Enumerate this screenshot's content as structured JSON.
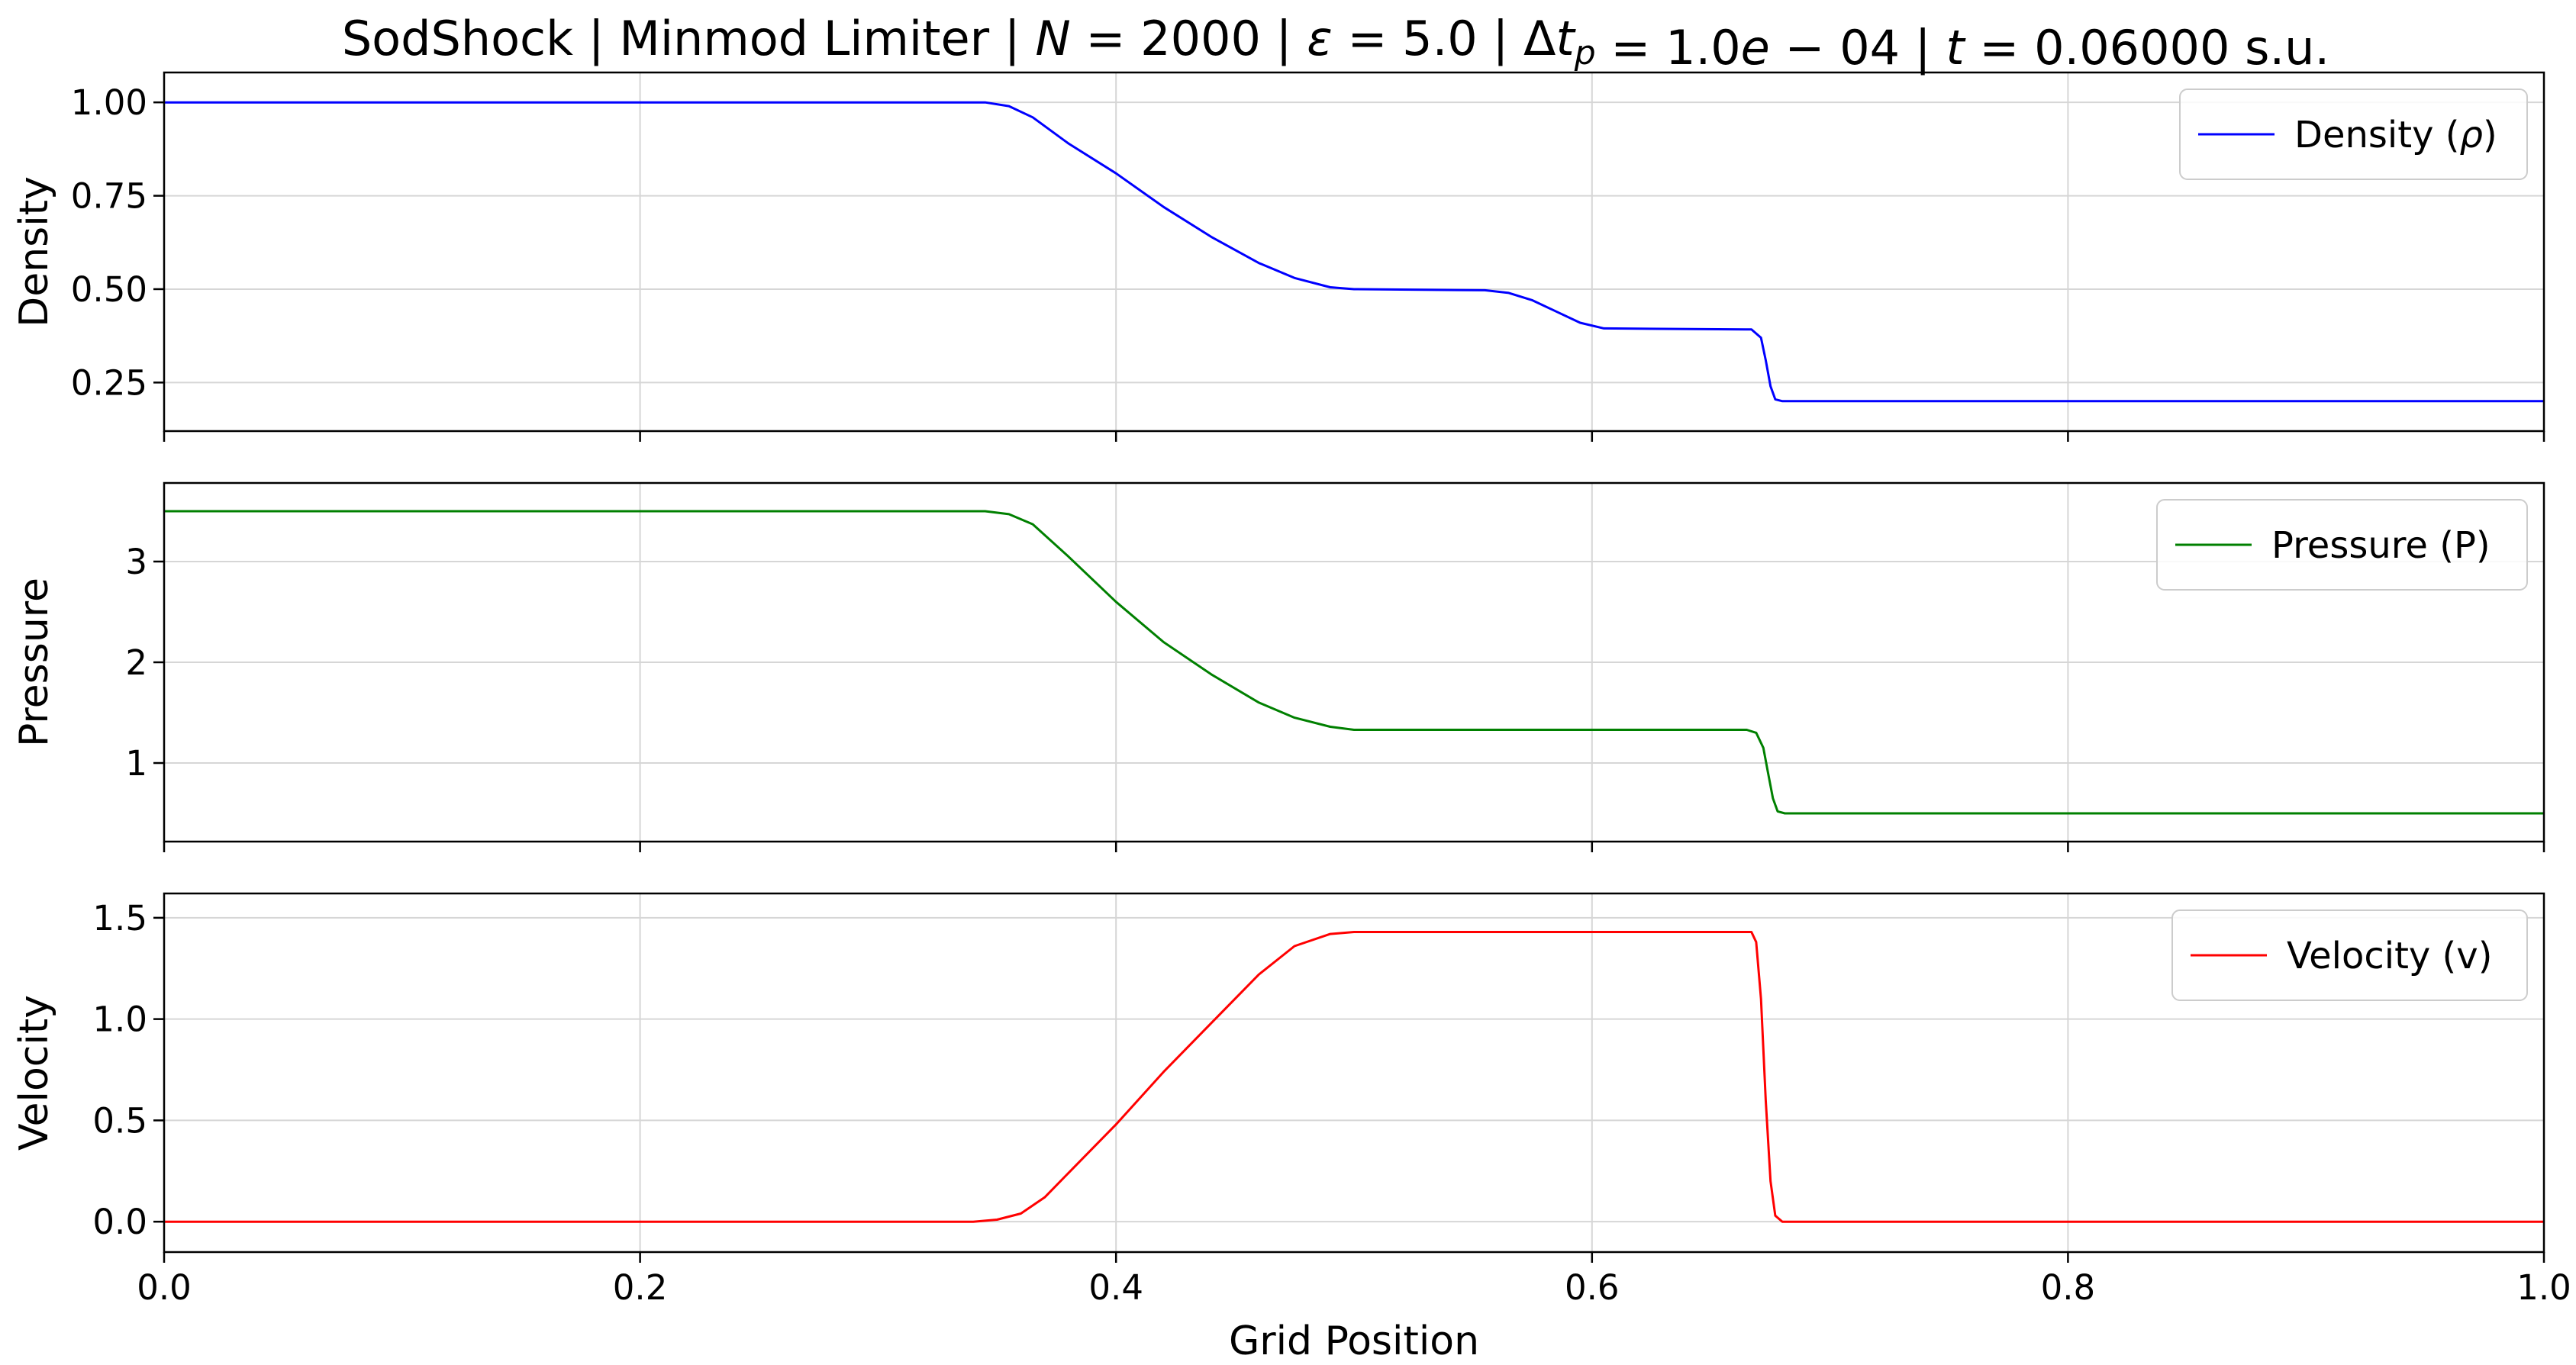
{
  "title": "SodShock | Minmod Limiter | N = 2000 | ε = 5.0 | Δt_p = 1.0e−04 | t = 0.06000 s.u.",
  "chart_data": [
    {
      "type": "line",
      "title": "SodShock | Minmod Limiter | N = 2000 | ε = 5.0 | Δt_p = 1.0e−04 | t = 0.06000 s.u.",
      "xlabel": "",
      "ylabel": "Density",
      "xlim": [
        0,
        1
      ],
      "ylim": [
        0.12,
        1.08
      ],
      "yticks": [
        0.25,
        0.5,
        0.75,
        1.0
      ],
      "ytick_labels": [
        "0.25",
        "0.50",
        "0.75",
        "1.00"
      ],
      "xticks": [
        0,
        0.2,
        0.4,
        0.6,
        0.8,
        1.0
      ],
      "grid": true,
      "legend": "top-right",
      "series": [
        {
          "name": "Density (ρ)",
          "color": "#0000ff",
          "x": [
            0,
            0.345,
            0.355,
            0.365,
            0.38,
            0.4,
            0.42,
            0.44,
            0.46,
            0.475,
            0.49,
            0.5,
            0.555,
            0.565,
            0.575,
            0.585,
            0.595,
            0.605,
            0.667,
            0.671,
            0.673,
            0.675,
            0.677,
            0.68,
            1.0
          ],
          "y": [
            1.0,
            1.0,
            0.99,
            0.96,
            0.89,
            0.81,
            0.72,
            0.64,
            0.57,
            0.53,
            0.505,
            0.5,
            0.497,
            0.49,
            0.47,
            0.44,
            0.41,
            0.395,
            0.392,
            0.37,
            0.31,
            0.24,
            0.205,
            0.2,
            0.2
          ]
        }
      ]
    },
    {
      "type": "line",
      "xlabel": "",
      "ylabel": "Pressure",
      "xlim": [
        0,
        1
      ],
      "ylim": [
        0.22,
        3.78
      ],
      "yticks": [
        1,
        2,
        3
      ],
      "ytick_labels": [
        "1",
        "2",
        "3"
      ],
      "xticks": [
        0,
        0.2,
        0.4,
        0.6,
        0.8,
        1.0
      ],
      "grid": true,
      "legend": "top-right",
      "series": [
        {
          "name": "Pressure (P)",
          "color": "#008000",
          "x": [
            0,
            0.345,
            0.355,
            0.365,
            0.38,
            0.4,
            0.42,
            0.44,
            0.46,
            0.475,
            0.49,
            0.5,
            0.665,
            0.669,
            0.672,
            0.674,
            0.676,
            0.678,
            0.681,
            1.0
          ],
          "y": [
            3.5,
            3.5,
            3.47,
            3.37,
            3.05,
            2.6,
            2.2,
            1.88,
            1.6,
            1.45,
            1.36,
            1.33,
            1.33,
            1.3,
            1.15,
            0.9,
            0.65,
            0.52,
            0.5,
            0.5
          ]
        }
      ]
    },
    {
      "type": "line",
      "xlabel": "Grid Position",
      "ylabel": "Velocity",
      "xlim": [
        0,
        1
      ],
      "ylim": [
        -0.15,
        1.62
      ],
      "yticks": [
        0,
        0.5,
        1.0,
        1.5
      ],
      "ytick_labels": [
        "0.0",
        "0.5",
        "1.0",
        "1.5"
      ],
      "xticks": [
        0,
        0.2,
        0.4,
        0.6,
        0.8,
        1.0
      ],
      "xtick_labels": [
        "0.0",
        "0.2",
        "0.4",
        "0.6",
        "0.8",
        "1.0"
      ],
      "grid": true,
      "legend": "top-right",
      "series": [
        {
          "name": "Velocity (v)",
          "color": "#ff0000",
          "x": [
            0,
            0.34,
            0.35,
            0.36,
            0.37,
            0.38,
            0.4,
            0.42,
            0.44,
            0.46,
            0.475,
            0.49,
            0.5,
            0.667,
            0.669,
            0.671,
            0.673,
            0.675,
            0.677,
            0.68,
            1.0
          ],
          "y": [
            0,
            0,
            0.01,
            0.04,
            0.12,
            0.24,
            0.48,
            0.74,
            0.98,
            1.22,
            1.36,
            1.42,
            1.43,
            1.43,
            1.38,
            1.1,
            0.6,
            0.2,
            0.03,
            0,
            0
          ]
        }
      ]
    }
  ]
}
